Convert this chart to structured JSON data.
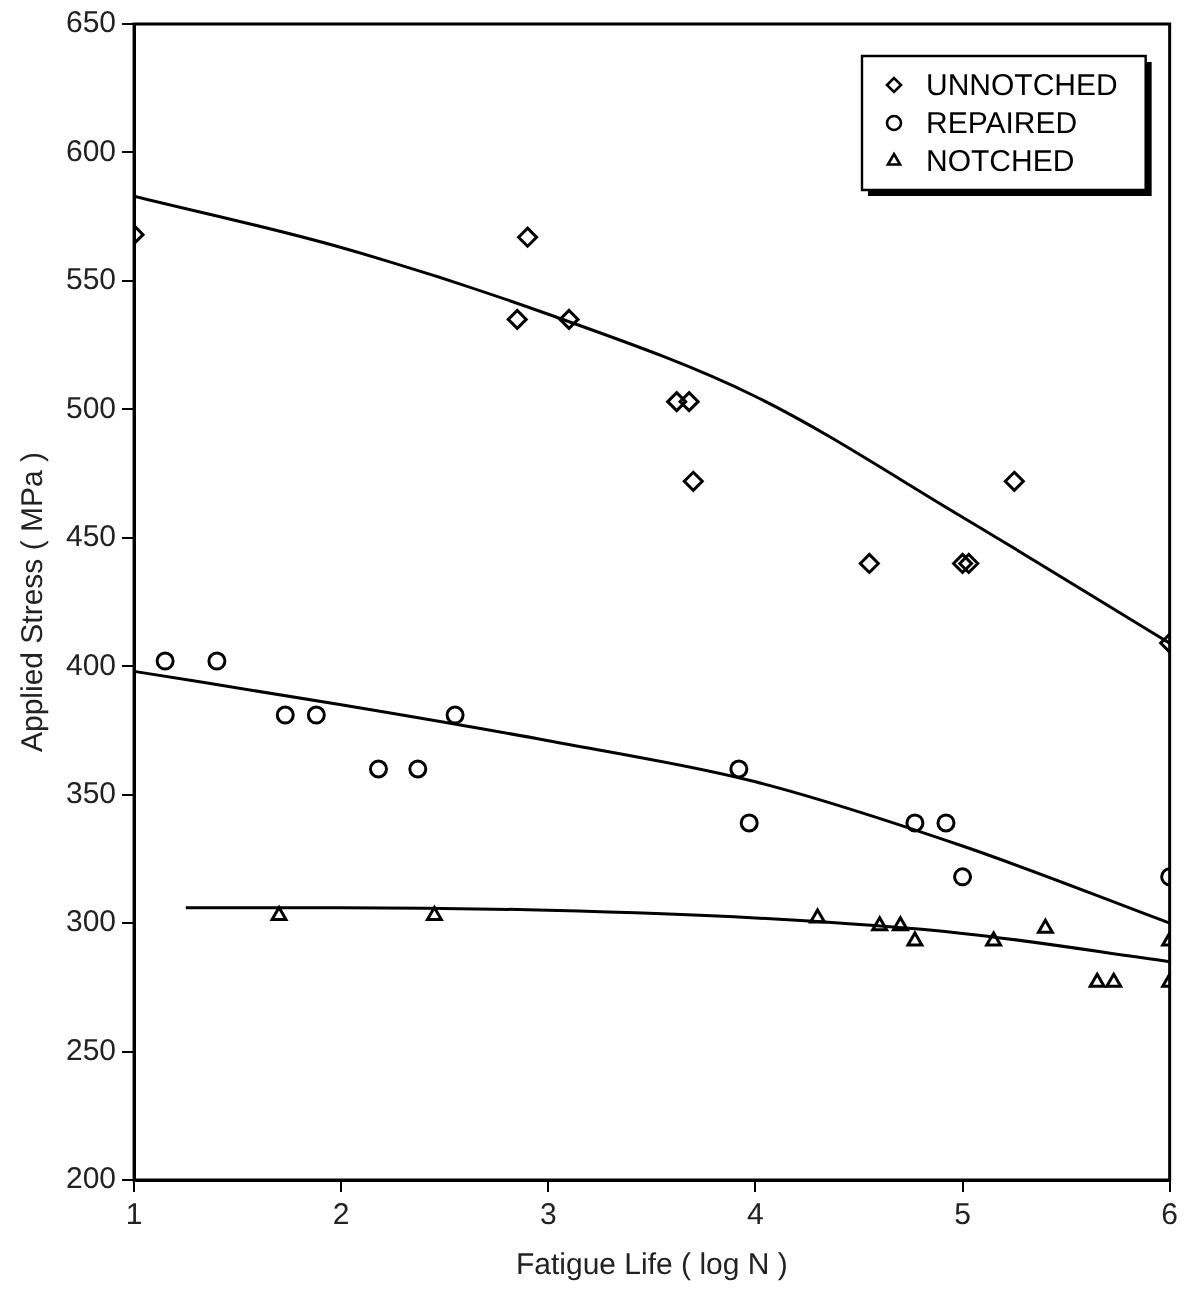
{
  "chart_data": {
    "type": "scatter",
    "xlabel": "Fatigue Life ( log N )",
    "ylabel": "Applied Stress ( MPa )",
    "xlim": [
      1,
      6
    ],
    "xticks": [
      1,
      2,
      3,
      4,
      5,
      6
    ],
    "ylim": [
      200,
      650
    ],
    "yticks": [
      200,
      250,
      300,
      350,
      400,
      450,
      500,
      550,
      600,
      650
    ],
    "grid": false,
    "legend": "top right",
    "series": [
      {
        "name": "UNNOTCHED",
        "color": "#000000",
        "marker": "diamond",
        "x": [
          1,
          2.85,
          2.9,
          3.1,
          3.62,
          3.68,
          3.7,
          4.55,
          5,
          5.03,
          5.25,
          6
        ],
        "values": [
          568,
          535,
          567,
          535,
          503,
          503,
          472,
          440,
          440,
          440,
          472,
          409
        ]
      },
      {
        "name": "REPAIRED",
        "color": "#000000",
        "marker": "circle",
        "x": [
          1.15,
          1.4,
          1.73,
          1.88,
          2.18,
          2.37,
          2.55,
          3.92,
          3.97,
          4.77,
          4.92,
          5,
          6
        ],
        "values": [
          402,
          402,
          381,
          381,
          360,
          360,
          381,
          360,
          339,
          339,
          339,
          318,
          318
        ]
      },
      {
        "name": "NOTCHED",
        "color": "#000000",
        "marker": "triangle",
        "x": [
          1.7,
          2.45,
          4.3,
          4.6,
          4.7,
          4.77,
          5.15,
          5.4,
          5.65,
          5.73,
          6,
          6
        ],
        "values": [
          303,
          303,
          302,
          299,
          299,
          293,
          293,
          298,
          277,
          277,
          293,
          277
        ]
      },
      {
        "type": "line",
        "color": "#000000",
        "marker": "none",
        "line_style": "solid",
        "x": [
          1,
          2,
          3,
          4,
          5,
          6
        ],
        "values": [
          583,
          563,
          537,
          505,
          458,
          409
        ]
      },
      {
        "type": "line",
        "color": "#000000",
        "marker": "none",
        "line_style": "solid",
        "x": [
          1,
          2,
          3,
          4,
          5,
          6
        ],
        "values": [
          398,
          385,
          371,
          355,
          330,
          300
        ]
      },
      {
        "type": "line",
        "color": "#000000",
        "marker": "none",
        "line_style": "solid",
        "x": [
          1.25,
          2,
          3,
          4,
          5,
          6
        ],
        "values": [
          306,
          306,
          305,
          302,
          296,
          285
        ]
      }
    ]
  }
}
